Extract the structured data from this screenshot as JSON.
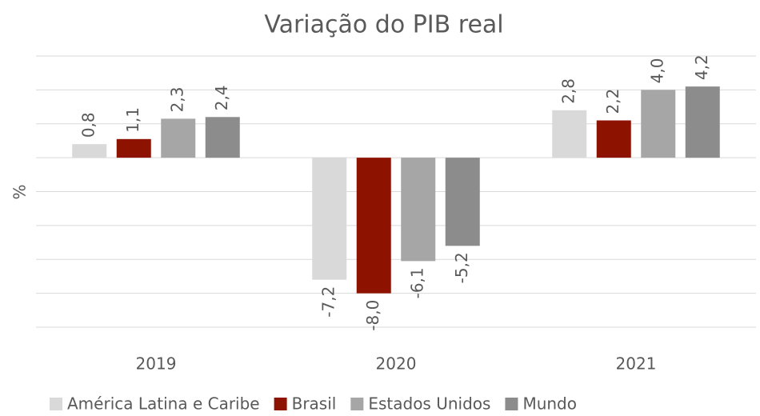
{
  "chart_data": {
    "type": "bar",
    "title": "Variação do PIB real",
    "y_label": "%",
    "categories": [
      "2019",
      "2020",
      "2021"
    ],
    "series": [
      {
        "name": "América Latina e Caribe",
        "color": "#d9d9d9",
        "values": [
          0.8,
          -7.2,
          2.8
        ],
        "value_labels": [
          "0,8",
          "-7,2",
          "2,8"
        ]
      },
      {
        "name": "Brasil",
        "color": "#8e1200",
        "values": [
          1.1,
          -8.0,
          2.2
        ],
        "value_labels": [
          "1,1",
          "-8,0",
          "2,2"
        ]
      },
      {
        "name": "Estados Unidos",
        "color": "#a6a6a6",
        "values": [
          2.3,
          -6.1,
          4.0
        ],
        "value_labels": [
          "2,3",
          "-6,1",
          "4,0"
        ]
      },
      {
        "name": "Mundo",
        "color": "#8c8c8c",
        "values": [
          2.4,
          -5.2,
          4.2
        ],
        "value_labels": [
          "2,4",
          "-5,2",
          "4,2"
        ]
      }
    ],
    "ylim": [
      -10,
      6
    ],
    "yticks": [
      -10,
      -8,
      -6,
      -4,
      -2,
      0,
      2,
      4,
      6
    ],
    "grid": true,
    "legend": "bottom"
  }
}
